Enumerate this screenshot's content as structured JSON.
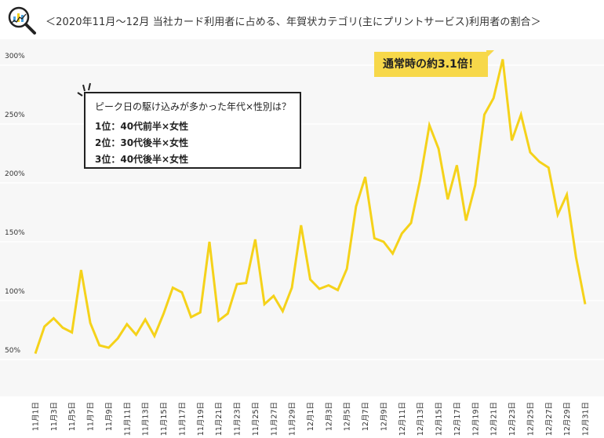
{
  "title": "＜2020年11月〜12月 当社カード利用者に占める、年賀状カテゴリ(主にプリントサービス)利用者の割合＞",
  "logo_icon": "magnifier-chart-icon",
  "colors": {
    "line": "#f5d21a",
    "callout": "#f7d84a",
    "plot_bg": "#f7f7f7",
    "grid": "#ffffff"
  },
  "callout": {
    "text": "通常時の約3.1倍！"
  },
  "infobox": {
    "question": "ピーク日の駆け込みが多かった年代×性別は？",
    "ranks": [
      "1位：40代前半×女性",
      "2位：30代後半×女性",
      "3位：40代後半×女性"
    ]
  },
  "chart_data": {
    "type": "line",
    "title": "＜2020年11月〜12月 当社カード利用者に占める、年賀状カテゴリ(主にプリントサービス)利用者の割合＞",
    "xlabel": "",
    "ylabel": "",
    "y_unit": "%",
    "ylim": [
      50,
      300
    ],
    "yticks": [
      50,
      100,
      150,
      200,
      250,
      300
    ],
    "ytick_labels": [
      "50%",
      "100%",
      "150%",
      "200%",
      "250%",
      "300%"
    ],
    "grid": "horizontal",
    "x_tick_labels": [
      "11月1日",
      "11月3日",
      "11月5日",
      "11月7日",
      "11月9日",
      "11月11日",
      "11月13日",
      "11月15日",
      "11月17日",
      "11月19日",
      "11月21日",
      "11月23日",
      "11月25日",
      "11月27日",
      "11月29日",
      "12月1日",
      "12月3日",
      "12月5日",
      "12月7日",
      "12月9日",
      "12月11日",
      "12月13日",
      "12月15日",
      "12月17日",
      "12月19日",
      "12月21日",
      "12月23日",
      "12月25日",
      "12月27日",
      "12月29日",
      "12月31日"
    ],
    "x": [
      "11月1日",
      "11月2日",
      "11月3日",
      "11月4日",
      "11月5日",
      "11月6日",
      "11月7日",
      "11月8日",
      "11月9日",
      "11月10日",
      "11月11日",
      "11月12日",
      "11月13日",
      "11月14日",
      "11月15日",
      "11月16日",
      "11月17日",
      "11月18日",
      "11月19日",
      "11月20日",
      "11月21日",
      "11月22日",
      "11月23日",
      "11月24日",
      "11月25日",
      "11月26日",
      "11月27日",
      "11月28日",
      "11月29日",
      "11月30日",
      "12月1日",
      "12月2日",
      "12月3日",
      "12月4日",
      "12月5日",
      "12月6日",
      "12月7日",
      "12月8日",
      "12月9日",
      "12月10日",
      "12月11日",
      "12月12日",
      "12月13日",
      "12月14日",
      "12月15日",
      "12月16日",
      "12月17日",
      "12月18日",
      "12月19日",
      "12月20日",
      "12月21日",
      "12月22日",
      "12月23日",
      "12月24日",
      "12月25日",
      "12月26日",
      "12月27日",
      "12月28日",
      "12月29日",
      "12月30日",
      "12月31日"
    ],
    "series": [
      {
        "values": [
          55,
          78,
          85,
          77,
          73,
          126,
          81,
          62,
          60,
          68,
          80,
          71,
          84,
          70,
          89,
          111,
          107,
          86,
          90,
          150,
          83,
          89,
          114,
          115,
          152,
          97,
          104,
          91,
          111,
          164,
          118,
          110,
          113,
          109,
          127,
          180,
          205,
          153,
          150,
          140,
          157,
          166,
          203,
          249,
          229,
          186,
          215,
          168,
          198,
          258,
          272,
          305,
          236,
          258,
          226,
          218,
          213,
          173,
          190,
          137,
          97
        ]
      }
    ]
  }
}
